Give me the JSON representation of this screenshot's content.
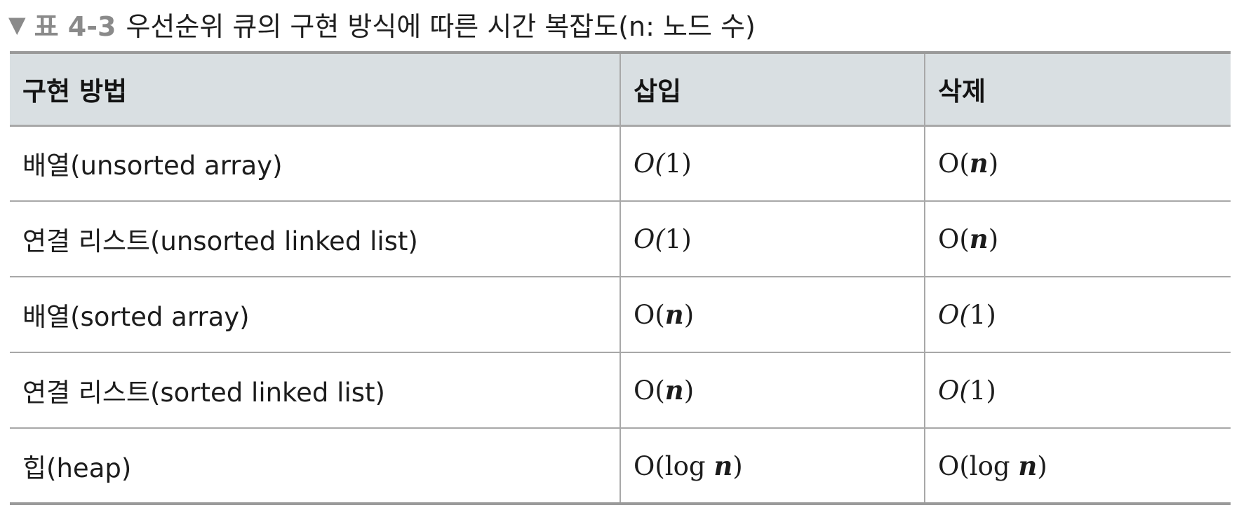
{
  "caption": {
    "marker": "▼",
    "label": "표 4-3",
    "text": "우선순위 큐의 구현 방식에 따른 시간 복잡도(n: 노드 수)"
  },
  "table": {
    "headers": [
      "구현 방법",
      "삽입",
      "삭제"
    ],
    "rows": [
      {
        "method": "배열(unsorted array)",
        "insert": {
          "pre": "O(",
          "var": "1",
          "post": ")",
          "style": "italic-O"
        },
        "delete": {
          "pre": "O(",
          "var": "n",
          "post": ")",
          "style": "plain-O"
        }
      },
      {
        "method": "연결 리스트(unsorted linked list)",
        "insert": {
          "pre": "O(",
          "var": "1",
          "post": ")",
          "style": "italic-O"
        },
        "delete": {
          "pre": "O(",
          "var": "n",
          "post": ")",
          "style": "plain-O"
        }
      },
      {
        "method": "배열(sorted array)",
        "insert": {
          "pre": "O(",
          "var": "n",
          "post": ")",
          "style": "plain-O"
        },
        "delete": {
          "pre": "O(",
          "var": "1",
          "post": ")",
          "style": "italic-O"
        }
      },
      {
        "method": "연결 리스트(sorted linked list)",
        "insert": {
          "pre": "O(",
          "var": "n",
          "post": ")",
          "style": "plain-O"
        },
        "delete": {
          "pre": "O(",
          "var": "1",
          "post": ")",
          "style": "italic-O"
        }
      },
      {
        "method": "힙(heap)",
        "insert": {
          "pre": "O(log ",
          "var": "n",
          "post": ")",
          "style": "plain-O"
        },
        "delete": {
          "pre": "O(log ",
          "var": "n",
          "post": ")",
          "style": "plain-O"
        }
      }
    ]
  },
  "colors": {
    "header_bg": "#d9dfe2",
    "rule": "#a8a8a8",
    "caption_gray": "#8a8a8a"
  }
}
